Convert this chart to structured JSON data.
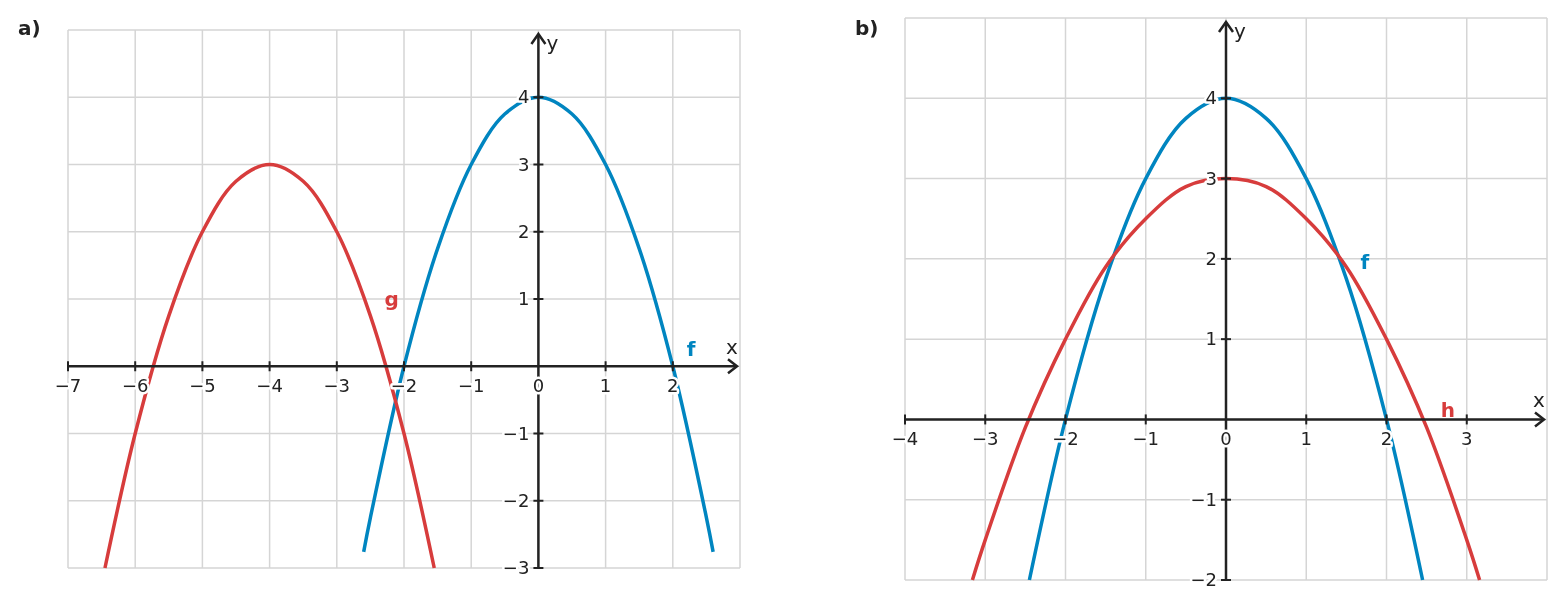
{
  "chart_data": [
    {
      "type": "line",
      "title": "a)",
      "xlabel": "x",
      "ylabel": "y",
      "xlim": [
        -7,
        3
      ],
      "ylim": [
        -3,
        5
      ],
      "xticks": [
        {
          "value": -7,
          "label": "−7"
        },
        {
          "value": -6,
          "label": "−6"
        },
        {
          "value": -5,
          "label": "−5"
        },
        {
          "value": -4,
          "label": "−4"
        },
        {
          "value": -3,
          "label": "−3"
        },
        {
          "value": -2,
          "label": "−2"
        },
        {
          "value": -1,
          "label": "−1"
        },
        0,
        1,
        2
      ],
      "yticks": [
        {
          "value": -3,
          "label": "−3"
        },
        {
          "value": -2,
          "label": "−2"
        },
        {
          "value": -1,
          "label": "−1"
        },
        1,
        2,
        3,
        4
      ],
      "grid": true,
      "series": [
        {
          "name": "f",
          "color": "#0085c0",
          "x": [
            -2.6,
            -2.5,
            -2,
            -1.5,
            -1,
            -0.5,
            0,
            0.5,
            1,
            1.5,
            2,
            2.5,
            2.6
          ],
          "values": [
            -2.76,
            -2.25,
            0,
            1.75,
            3,
            3.75,
            4,
            3.75,
            3,
            1.75,
            0,
            -2.25,
            -2.76
          ]
        },
        {
          "name": "g",
          "color": "#d73c3c",
          "x": [
            -6.45,
            -6,
            -5.5,
            -5,
            -4.5,
            -4,
            -3.5,
            -3,
            -2.5,
            -2,
            -1.55
          ],
          "values": [
            -3,
            -1,
            0.75,
            2,
            2.75,
            3,
            2.75,
            2,
            0.75,
            -1,
            -3
          ]
        }
      ]
    },
    {
      "type": "line",
      "title": "b)",
      "xlabel": "x",
      "ylabel": "y",
      "xlim": [
        -4,
        4
      ],
      "ylim": [
        -2,
        5
      ],
      "xticks": [
        {
          "value": -4,
          "label": "−4"
        },
        {
          "value": -3,
          "label": "−3"
        },
        {
          "value": -2,
          "label": "−2"
        },
        {
          "value": -1,
          "label": "−1"
        },
        0,
        1,
        2,
        3
      ],
      "yticks": [
        {
          "value": -2,
          "label": "−2"
        },
        {
          "value": -1,
          "label": "−1"
        },
        1,
        2,
        3,
        4
      ],
      "grid": true,
      "series": [
        {
          "name": "f",
          "color": "#0085c0",
          "x": [
            -2.45,
            -2,
            -1.5,
            -1,
            -0.5,
            0,
            0.5,
            1,
            1.5,
            2,
            2.45
          ],
          "values": [
            -2,
            0,
            1.75,
            3,
            3.75,
            4,
            3.75,
            3,
            1.75,
            0,
            -2
          ]
        },
        {
          "name": "h",
          "color": "#d73c3c",
          "x": [
            -3.16,
            -3,
            -2.5,
            -2,
            -1.5,
            -1,
            -0.5,
            0,
            0.5,
            1,
            1.5,
            2,
            2.5,
            3,
            3.16
          ],
          "values": [
            -2,
            -1.5,
            -0.1,
            1,
            1.9,
            2.5,
            2.9,
            3,
            2.9,
            2.5,
            1.9,
            1,
            -0.1,
            -1.5,
            -2
          ]
        }
      ]
    }
  ]
}
